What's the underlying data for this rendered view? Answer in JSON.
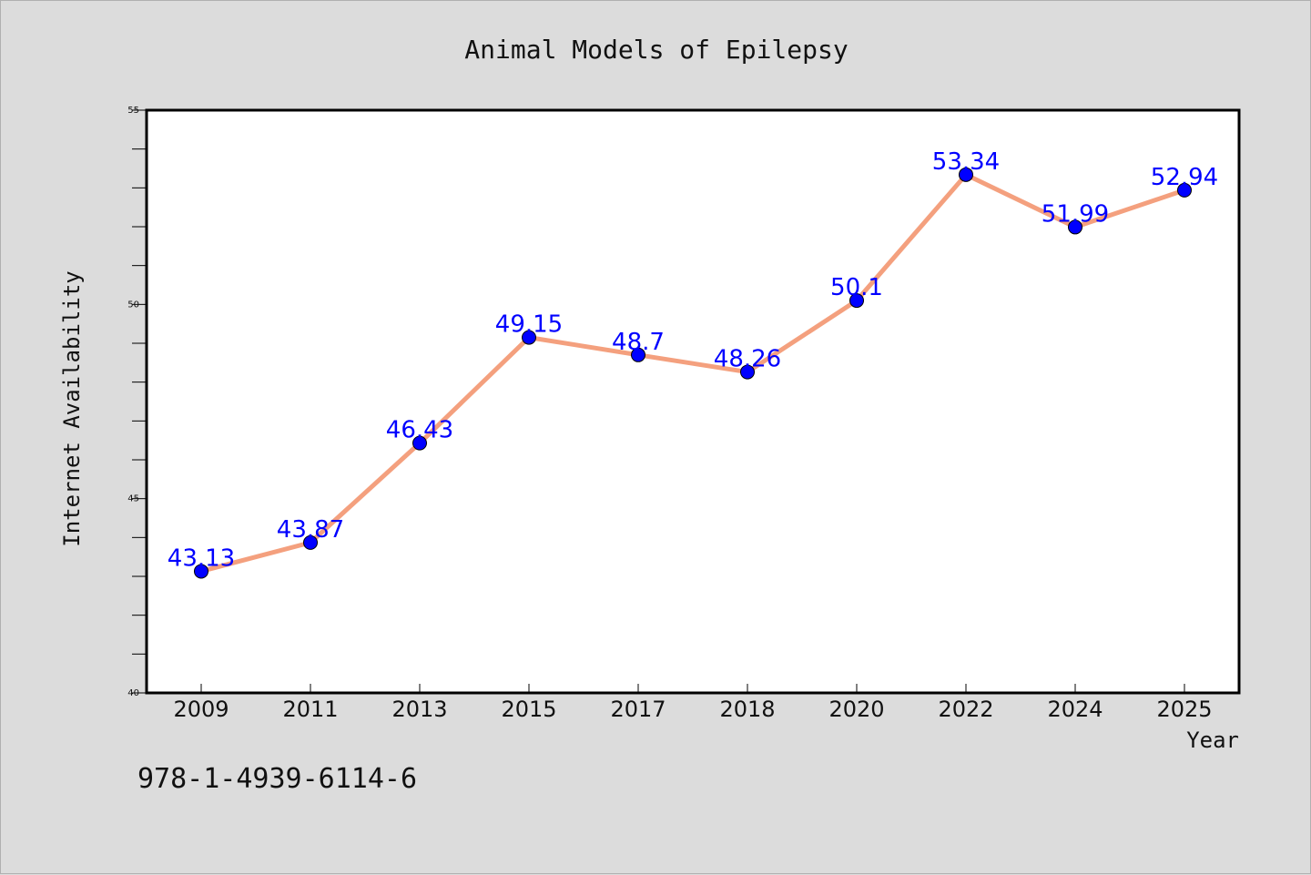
{
  "chart_data": {
    "type": "line",
    "title": "Animal Models of Epilepsy",
    "xlabel": "Year",
    "ylabel": "Internet Availability",
    "categories": [
      "2009",
      "2011",
      "2013",
      "2015",
      "2017",
      "2018",
      "2020",
      "2022",
      "2024",
      "2025"
    ],
    "values": [
      43.13,
      43.87,
      46.43,
      49.15,
      48.7,
      48.26,
      50.1,
      53.34,
      51.99,
      52.94
    ],
    "data_labels": [
      "43.13",
      "43.87",
      "46.43",
      "49.15",
      "48.7",
      "48.26",
      "50.1",
      "53.34",
      "51.99",
      "52.94"
    ],
    "ylim": [
      40,
      55
    ],
    "yticks": [
      40,
      45,
      50,
      55
    ],
    "grid": false,
    "legend": "none",
    "line_color": "#f4a07e",
    "marker_color": "#0000ff",
    "label_color": "#0000ff"
  },
  "footer": {
    "isbn": "978-1-4939-6114-6"
  }
}
